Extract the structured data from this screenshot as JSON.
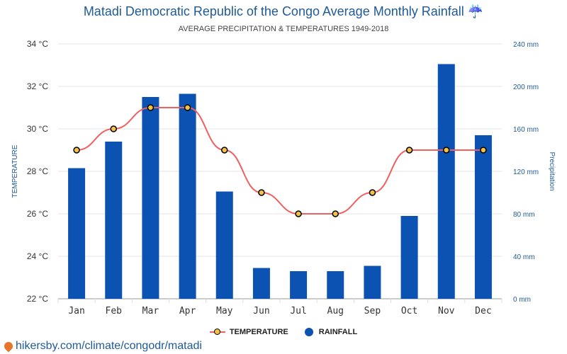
{
  "title": "Matadi Democratic Republic of the Congo Average Monthly Rainfall ☔",
  "subtitle": "AVERAGE PRECIPITATION & TEMPERATURES 1949-2018",
  "legend": {
    "temperature": "TEMPERATURE",
    "rainfall": "RAINFALL",
    "position": "bottom"
  },
  "source": "hikersby.com/climate/congodr/matadi",
  "colors": {
    "bars": "#0b52b3",
    "line": "#f06060",
    "marker_fill": "#f5c145",
    "marker_stroke": "#000000",
    "title": "#1f5a96",
    "right_axis": "#1f5a96"
  },
  "chart_data": {
    "type": "bar+line",
    "categories": [
      "Jan",
      "Feb",
      "Mar",
      "Apr",
      "May",
      "Jun",
      "Jul",
      "Aug",
      "Sep",
      "Oct",
      "Nov",
      "Dec"
    ],
    "series": [
      {
        "name": "RAINFALL",
        "type": "bar",
        "axis": "right",
        "values": [
          123,
          148,
          190,
          193,
          101,
          29,
          26,
          26,
          31,
          78,
          221,
          154
        ]
      },
      {
        "name": "TEMPERATURE",
        "type": "line",
        "axis": "left",
        "values": [
          29,
          30,
          31,
          31,
          29,
          27,
          26,
          26,
          27,
          29,
          29,
          29
        ]
      }
    ],
    "left_axis": {
      "label": "TEMPERATURE",
      "min": 22,
      "max": 34,
      "ticks": [
        "22 °C",
        "24 °C",
        "26 °C",
        "28 °C",
        "30 °C",
        "32 °C",
        "34 °C"
      ]
    },
    "right_axis": {
      "label": "Precipitation",
      "min": 0,
      "max": 240,
      "ticks": [
        "0 mm",
        "40 mm",
        "80 mm",
        "120 mm",
        "160 mm",
        "200 mm",
        "240 mm"
      ]
    },
    "grid": true
  }
}
